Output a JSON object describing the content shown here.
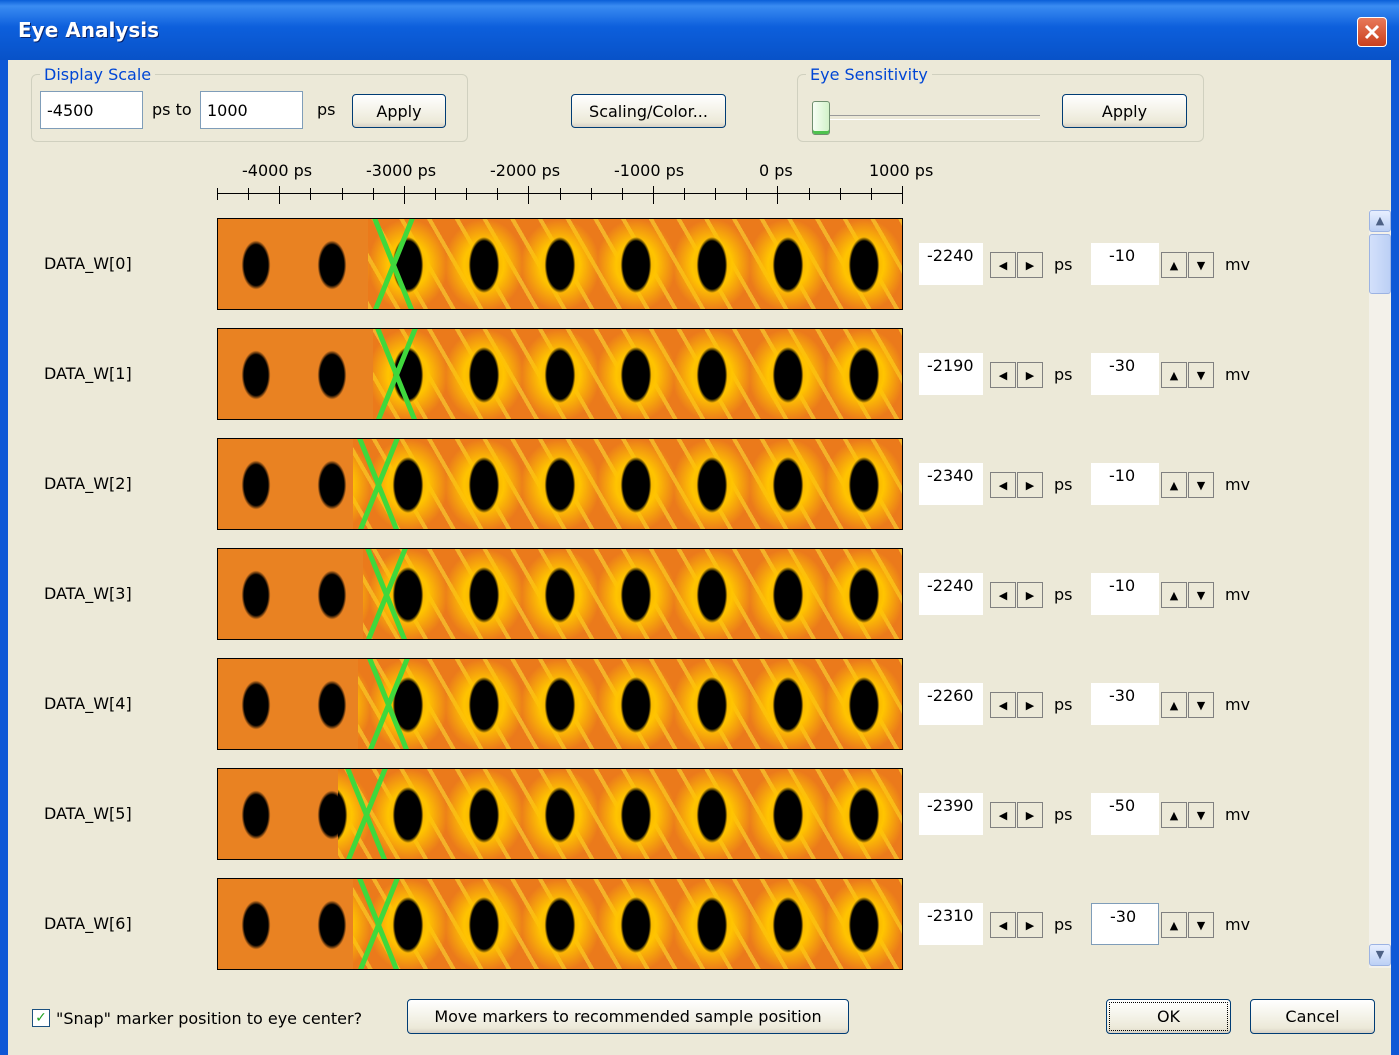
{
  "window": {
    "title": "Eye Analysis"
  },
  "display_scale": {
    "group_label": "Display Scale",
    "from_value": "-4500",
    "to_label": "ps to",
    "to_value": "1000",
    "unit": "ps",
    "apply_label": "Apply"
  },
  "scaling_color_label": "Scaling/Color...",
  "eye_sensitivity": {
    "group_label": "Eye Sensitivity",
    "apply_label": "Apply",
    "level": 0
  },
  "ruler": {
    "ticks": [
      "-4000 ps",
      "-3000 ps",
      "-2000 ps",
      "-1000 ps",
      "0 ps",
      "1000 ps"
    ]
  },
  "channels": [
    {
      "name": "DATA_W[0]",
      "ps": "-2240",
      "mv": "-10"
    },
    {
      "name": "DATA_W[1]",
      "ps": "-2190",
      "mv": "-30"
    },
    {
      "name": "DATA_W[2]",
      "ps": "-2340",
      "mv": "-10"
    },
    {
      "name": "DATA_W[3]",
      "ps": "-2240",
      "mv": "-10"
    },
    {
      "name": "DATA_W[4]",
      "ps": "-2260",
      "mv": "-30"
    },
    {
      "name": "DATA_W[5]",
      "ps": "-2390",
      "mv": "-50"
    },
    {
      "name": "DATA_W[6]",
      "ps": "-2310",
      "mv": "-30"
    }
  ],
  "units": {
    "ps": "ps",
    "mv": "mv"
  },
  "footer": {
    "snap_label": "\"Snap\" marker position to eye center?",
    "snap_checked": true,
    "move_markers_label": "Move markers to recommended sample position",
    "ok_label": "OK",
    "cancel_label": "Cancel"
  },
  "colors": {
    "accent": "#0046d5",
    "eye_bg": "#e8751a",
    "transition": "#3fd83c"
  }
}
